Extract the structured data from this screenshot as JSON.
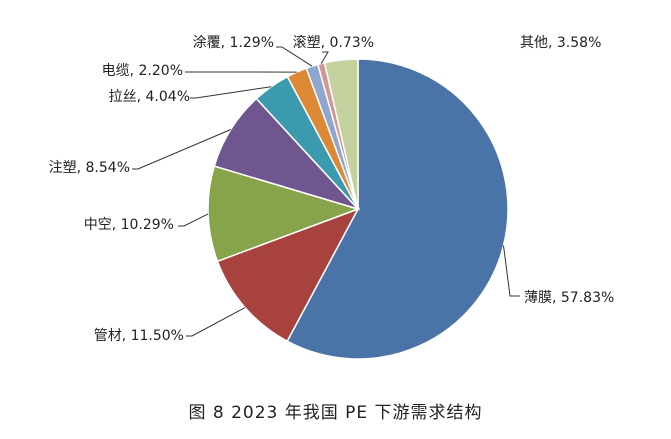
{
  "caption": "图 8  2023 年我国 PE 下游需求结构",
  "chart_data": {
    "type": "pie",
    "slices": [
      {
        "name": "薄膜",
        "value": 57.83,
        "label": "薄膜, 57.83%",
        "color": "#4A73A8"
      },
      {
        "name": "管材",
        "value": 11.5,
        "label": "管材, 11.50%",
        "color": "#A8423F"
      },
      {
        "name": "中空",
        "value": 10.29,
        "label": "中空, 10.29%",
        "color": "#88A44A"
      },
      {
        "name": "注塑",
        "value": 8.54,
        "label": "注塑, 8.54%",
        "color": "#70568F"
      },
      {
        "name": "拉丝",
        "value": 4.04,
        "label": "拉丝, 4.04%",
        "color": "#3C9AAF"
      },
      {
        "name": "电缆",
        "value": 2.2,
        "label": "电缆, 2.20%",
        "color": "#DC8834"
      },
      {
        "name": "涂覆",
        "value": 1.29,
        "label": "涂覆, 1.29%",
        "color": "#8EA7D1"
      },
      {
        "name": "滚塑",
        "value": 0.73,
        "label": "滚塑, 0.73%",
        "color": "#D49694"
      },
      {
        "name": "其他",
        "value": 3.58,
        "label": "其他, 3.58%",
        "color": "#C3D29F"
      }
    ]
  }
}
